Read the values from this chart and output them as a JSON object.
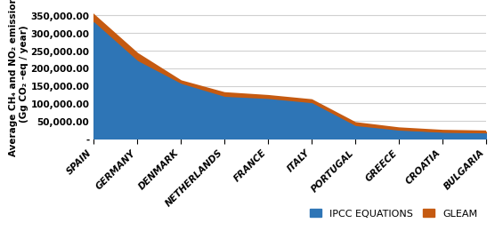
{
  "categories": [
    "SPAIN",
    "GERMANY",
    "DENMARK",
    "NETHERLANDS",
    "FRANCE",
    "ITALY",
    "PORTUGAL",
    "GREECE",
    "CROATIA",
    "BULGARIA"
  ],
  "ipcc_values": [
    330000,
    220000,
    155000,
    118000,
    112000,
    100000,
    35000,
    22000,
    16000,
    14000
  ],
  "gleam_values": [
    350000,
    240000,
    162000,
    128000,
    120000,
    108000,
    43000,
    28000,
    21000,
    19000
  ],
  "ylabel": "Average CH₄ and NO₂ emissions\n(Gg CO₂ -eq / year)",
  "ipcc_label": "IPCC EQUATIONS",
  "gleam_label": "GLEAM",
  "ipcc_color": "#2E75B6",
  "gleam_color": "#C55A11",
  "ylim": [
    0,
    370000
  ],
  "yticks": [
    0,
    50000,
    100000,
    150000,
    200000,
    250000,
    300000,
    350000
  ],
  "ytick_labels": [
    "-",
    "50,000.00",
    "100,000.00",
    "150,000.00",
    "200,000.00",
    "250,000.00",
    "300,000.00",
    "350,000.00"
  ],
  "background_color": "#FFFFFF",
  "grid_color": "#D0D0D0"
}
